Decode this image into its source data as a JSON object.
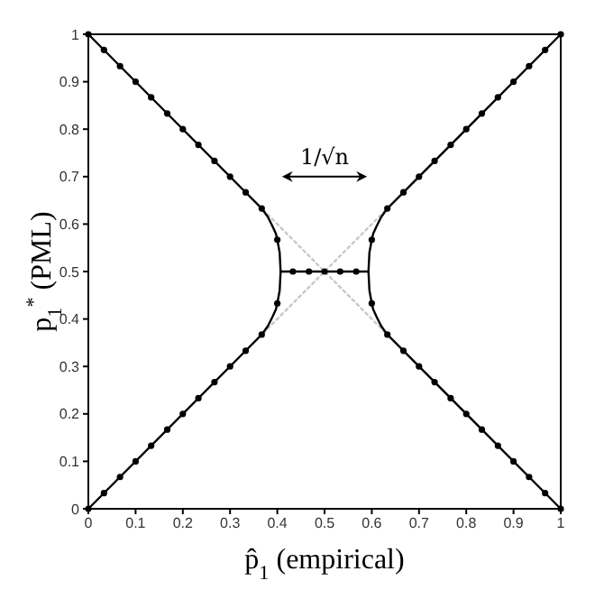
{
  "chart_data": {
    "type": "line",
    "xlabel": "p̂$_{1}$ (empirical)",
    "ylabel": "p$_{1}$$^{*}$ (PML)",
    "xlim": [
      0,
      1
    ],
    "ylim": [
      0,
      1
    ],
    "xticks": [
      0,
      0.1,
      0.2,
      0.3,
      0.4,
      0.5,
      0.6,
      0.7,
      0.8,
      0.9,
      1
    ],
    "yticks": [
      0,
      0.1,
      0.2,
      0.3,
      0.4,
      0.5,
      0.6,
      0.7,
      0.8,
      0.9,
      1
    ],
    "annotations": [
      "1/√n"
    ],
    "series": [
      {
        "color": "#c8c8c8",
        "line_style": "dotted",
        "marker": "none",
        "x": [
          0.37,
          0.63
        ],
        "values": [
          0.37,
          0.63
        ]
      },
      {
        "color": "#c8c8c8",
        "line_style": "dotted",
        "marker": "none",
        "x": [
          0.37,
          0.63
        ],
        "values": [
          0.63,
          0.37
        ]
      },
      {
        "color": "#000000",
        "line_style": "solid",
        "marker": "none",
        "x": [
          0,
          0.367,
          0.38,
          0.39,
          0.397,
          0.4,
          0.405,
          0.407,
          0.405,
          0.4,
          0.397,
          0.39,
          0.38,
          0.367,
          0
        ],
        "values": [
          0,
          0.367,
          0.385,
          0.405,
          0.42,
          0.433,
          0.46,
          0.5,
          0.54,
          0.567,
          0.58,
          0.595,
          0.615,
          0.633,
          1
        ]
      },
      {
        "color": "#000000",
        "line_style": "solid",
        "marker": "none",
        "x": [
          1,
          0.633,
          0.62,
          0.61,
          0.603,
          0.6,
          0.595,
          0.593,
          0.595,
          0.6,
          0.603,
          0.61,
          0.62,
          0.633,
          1
        ],
        "values": [
          0,
          0.367,
          0.385,
          0.405,
          0.42,
          0.433,
          0.46,
          0.5,
          0.54,
          0.567,
          0.58,
          0.595,
          0.615,
          0.633,
          1
        ]
      },
      {
        "color": "#000000",
        "line_style": "solid",
        "marker": "none",
        "x": [
          0.407,
          0.593
        ],
        "values": [
          0.5,
          0.5
        ]
      },
      {
        "type": "scatter",
        "color": "#000000",
        "marker": "circle",
        "x": [
          0,
          0.033,
          0.067,
          0.1,
          0.133,
          0.167,
          0.2,
          0.233,
          0.267,
          0.3,
          0.333,
          0.367,
          0,
          0.033,
          0.067,
          0.1,
          0.133,
          0.167,
          0.2,
          0.233,
          0.267,
          0.3,
          0.333,
          0.367,
          0.4,
          0.4,
          0.433,
          0.467,
          0.5,
          0.533,
          0.567,
          0.6,
          0.6,
          0.633,
          0.667,
          0.7,
          0.733,
          0.767,
          0.8,
          0.833,
          0.867,
          0.9,
          0.933,
          0.967,
          1,
          0.633,
          0.667,
          0.7,
          0.733,
          0.767,
          0.8,
          0.833,
          0.867,
          0.9,
          0.933,
          0.967,
          1
        ],
        "values": [
          0,
          0.033,
          0.067,
          0.1,
          0.133,
          0.167,
          0.2,
          0.233,
          0.267,
          0.3,
          0.333,
          0.367,
          1,
          0.967,
          0.933,
          0.9,
          0.867,
          0.833,
          0.8,
          0.767,
          0.733,
          0.7,
          0.667,
          0.633,
          0.433,
          0.567,
          0.5,
          0.5,
          0.5,
          0.5,
          0.5,
          0.433,
          0.567,
          0.633,
          0.667,
          0.7,
          0.733,
          0.767,
          0.8,
          0.833,
          0.867,
          0.9,
          0.933,
          0.967,
          1,
          0.367,
          0.333,
          0.3,
          0.267,
          0.233,
          0.2,
          0.167,
          0.133,
          0.1,
          0.067,
          0.033,
          0
        ]
      }
    ]
  }
}
